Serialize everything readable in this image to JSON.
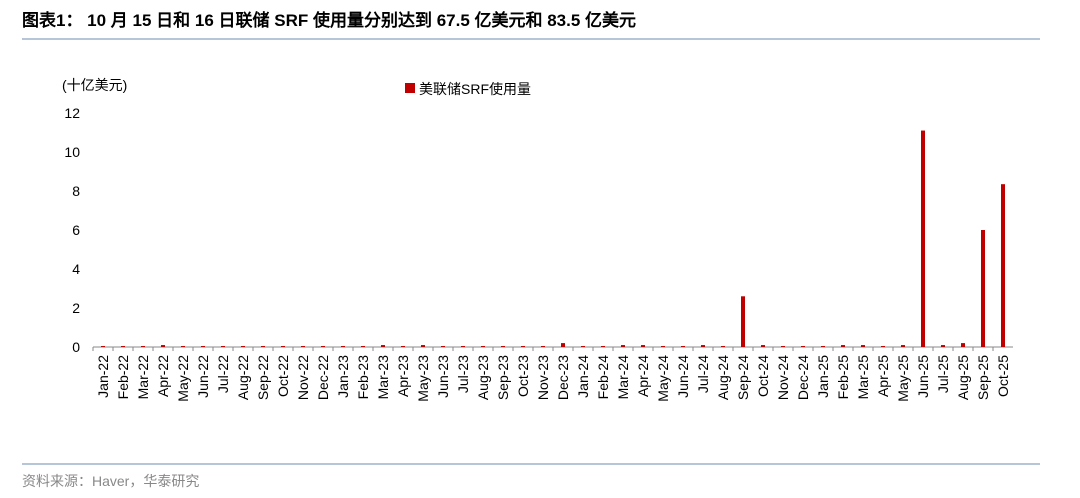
{
  "title": "图表1： 10 月 15 日和 16 日联储 SRF 使用量分别达到 67.5 亿美元和 83.5 亿美元",
  "source": "资料来源：Haver，华泰研究",
  "chart_data": {
    "type": "bar",
    "y_label": "(十亿美元)",
    "categories": [
      "Jan-22",
      "Feb-22",
      "Mar-22",
      "Apr-22",
      "May-22",
      "Jun-22",
      "Jul-22",
      "Aug-22",
      "Sep-22",
      "Oct-22",
      "Nov-22",
      "Dec-22",
      "Jan-23",
      "Feb-23",
      "Mar-23",
      "Apr-23",
      "May-23",
      "Jun-23",
      "Jul-23",
      "Aug-23",
      "Sep-23",
      "Oct-23",
      "Nov-23",
      "Dec-23",
      "Jan-24",
      "Feb-24",
      "Mar-24",
      "Apr-24",
      "May-24",
      "Jun-24",
      "Jul-24",
      "Aug-24",
      "Sep-24",
      "Oct-24",
      "Nov-24",
      "Dec-24",
      "Jan-25",
      "Feb-25",
      "Mar-25",
      "Apr-25",
      "May-25",
      "Jun-25",
      "Jul-25",
      "Aug-25",
      "Sep-25",
      "Oct-25"
    ],
    "series": [
      {
        "name": "美联储SRF使用量",
        "color": "#c00000",
        "values": [
          0.05,
          0.05,
          0.05,
          0.1,
          0.05,
          0.05,
          0.05,
          0.05,
          0.05,
          0.05,
          0.05,
          0.05,
          0.05,
          0.05,
          0.1,
          0.05,
          0.1,
          0.05,
          0.05,
          0.05,
          0.05,
          0.05,
          0.05,
          0.2,
          0.05,
          0.05,
          0.1,
          0.1,
          0.05,
          0.05,
          0.1,
          0.05,
          2.6,
          0.1,
          0.05,
          0.05,
          0.05,
          0.1,
          0.1,
          0.05,
          0.1,
          11.1,
          0.1,
          0.2,
          6.0,
          8.35
        ]
      }
    ],
    "ylim": [
      0,
      12
    ],
    "yticks": [
      0,
      2,
      4,
      6,
      8,
      10,
      12
    ],
    "legend": "top"
  }
}
